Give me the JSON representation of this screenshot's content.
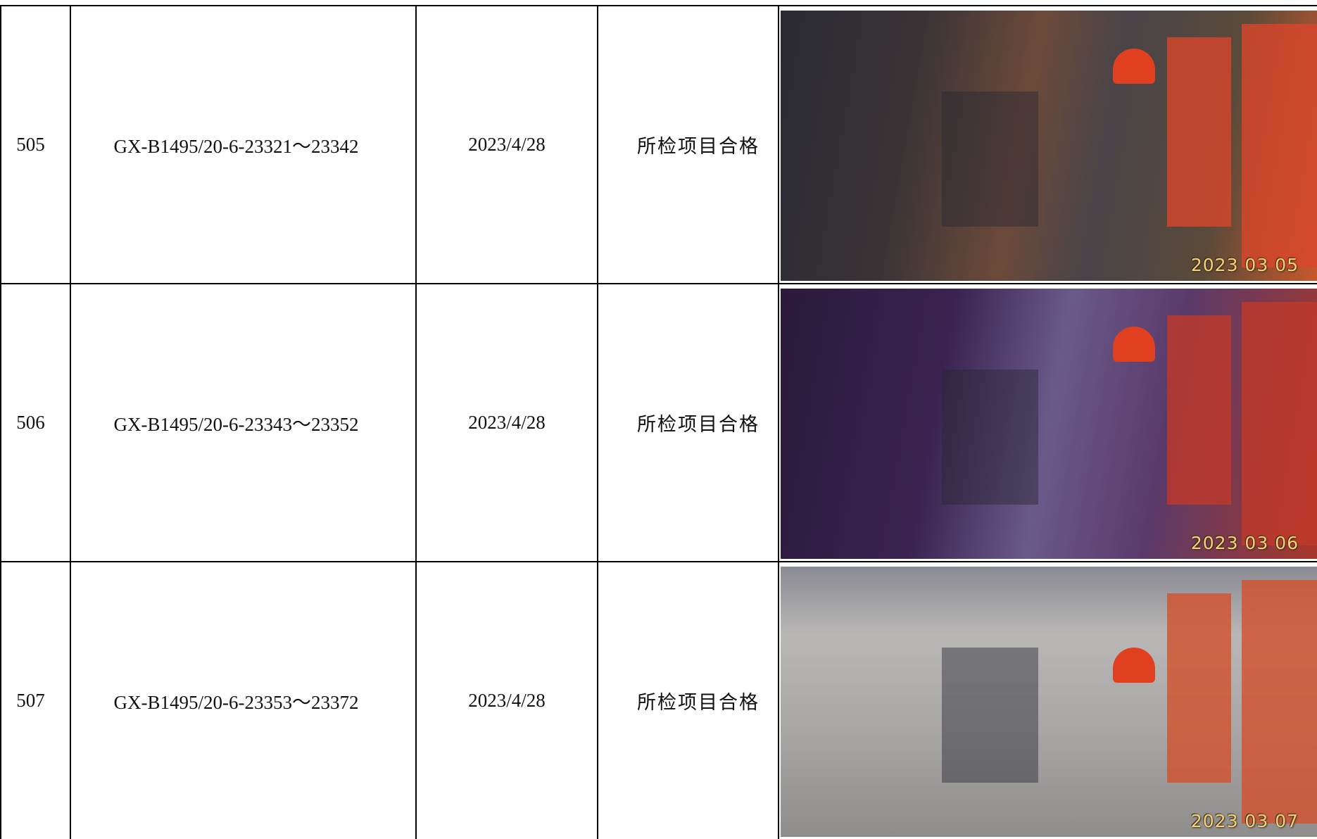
{
  "table": {
    "rows": [
      {
        "no": "505",
        "code": "GX-B1495/20-6-23321～23342",
        "date": "2023/4/28",
        "result": "所检项目合格",
        "photo_stamp": "2023 03 05"
      },
      {
        "no": "506",
        "code": "GX-B1495/20-6-23343～23352",
        "date": "2023/4/28",
        "result": "所检项目合格",
        "photo_stamp": "2023 03 06"
      },
      {
        "no": "507",
        "code": "GX-B1495/20-6-23353～23372",
        "date": "2023/4/28",
        "result": "所检项目合格",
        "photo_stamp": "2023 03 07"
      }
    ]
  }
}
